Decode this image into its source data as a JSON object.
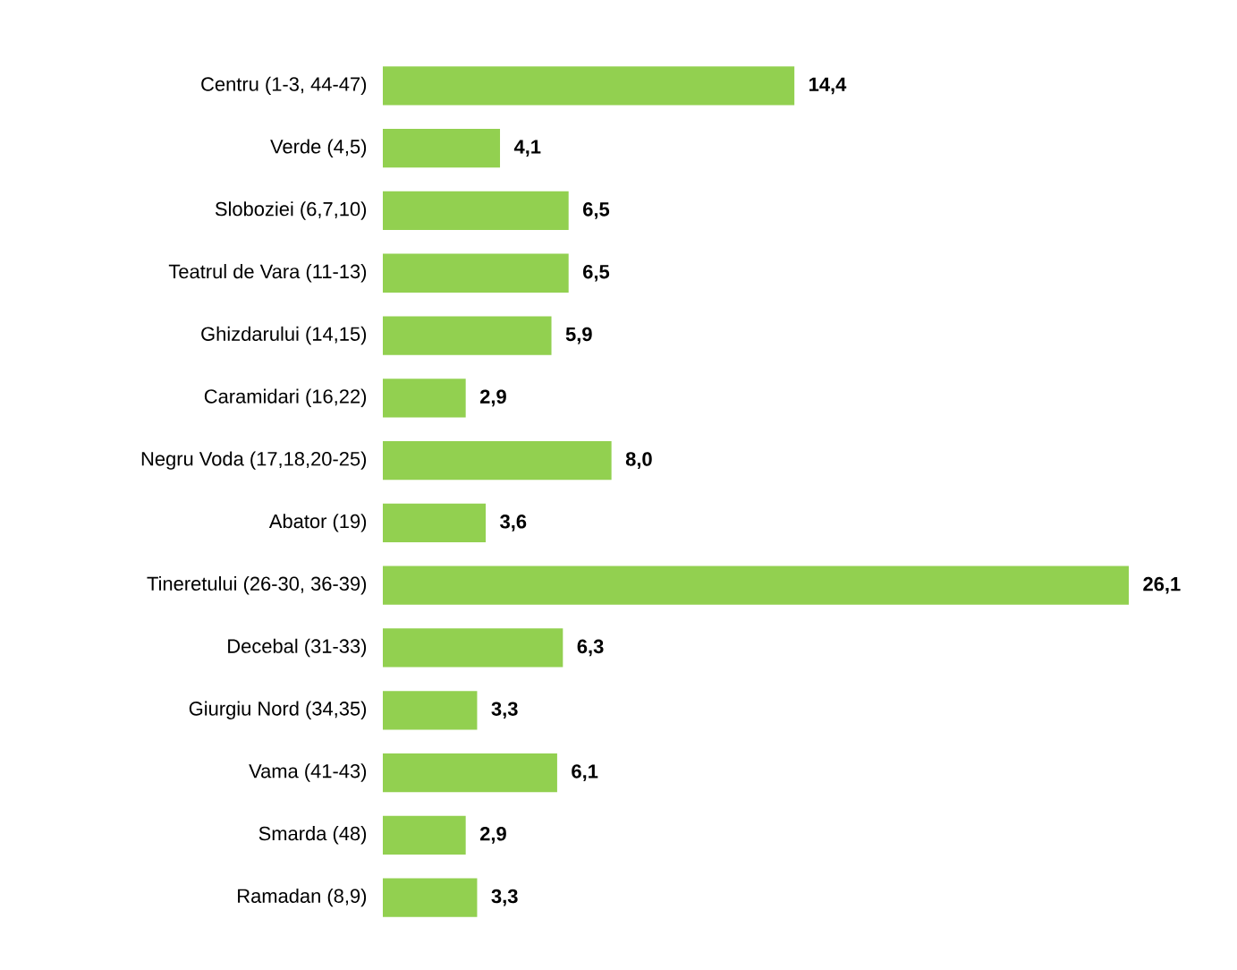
{
  "chart_data": {
    "type": "bar",
    "orientation": "horizontal",
    "color": "#92d050",
    "categories": [
      "Centru (1-3, 44-47)",
      "Verde (4,5)",
      "Sloboziei (6,7,10)",
      "Teatrul de Vara (11-13)",
      "Ghizdarului (14,15)",
      "Caramidari (16,22)",
      "Negru Voda (17,18,20-25)",
      "Abator (19)",
      "Tineretului (26-30, 36-39)",
      "Decebal (31-33)",
      "Giurgiu Nord (34,35)",
      "Vama (41-43)",
      "Smarda (48)",
      "Ramadan (8,9)"
    ],
    "values": [
      14.4,
      4.1,
      6.5,
      6.5,
      5.9,
      2.9,
      8.0,
      3.6,
      26.1,
      6.3,
      3.3,
      6.1,
      2.9,
      3.3
    ],
    "value_labels": [
      "14,4",
      "4,1",
      "6,5",
      "6,5",
      "5,9",
      "2,9",
      "8,0",
      "3,6",
      "26,1",
      "6,3",
      "3,3",
      "6,1",
      "2,9",
      "3,3"
    ]
  }
}
